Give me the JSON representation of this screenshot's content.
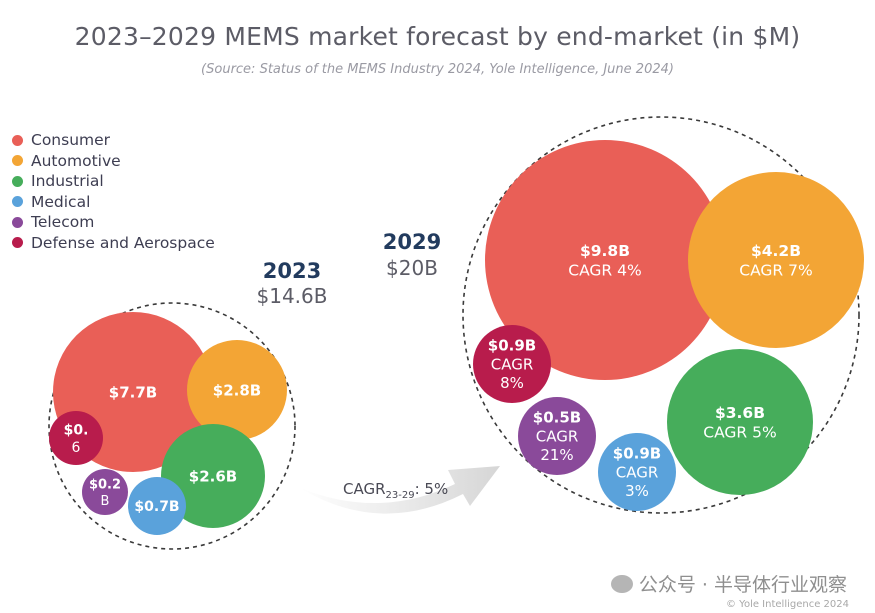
{
  "title": "2023–2029 MEMS market forecast by end-market (in $M)",
  "subtitle": "(Source: Status of the MEMS Industry 2024, Yole Intelligence, June 2024)",
  "watermark": "公众号 · 半导体行业观察",
  "copyright": "© Yole Intelligence 2024",
  "legend": [
    {
      "label": "Consumer",
      "color": "#e95f57"
    },
    {
      "label": "Automotive",
      "color": "#f3a535"
    },
    {
      "label": "Industrial",
      "color": "#46ad5b"
    },
    {
      "label": "Medical",
      "color": "#5aa2db"
    },
    {
      "label": "Telecom",
      "color": "#8a4a9a"
    },
    {
      "label": "Defense and Aerospace",
      "color": "#b81c4c"
    }
  ],
  "chart_data": {
    "type": "bubble",
    "title": "2023–2029 MEMS market forecast by end-market (in $M)",
    "cagr_arrow": {
      "label_main": "CAGR",
      "label_sub": "23-29",
      "label_tail": ": 5%"
    },
    "groups": [
      {
        "year": "2023",
        "total": "$14.6B",
        "segments": [
          {
            "name": "Consumer",
            "value": 7.7,
            "label_lines": [
              "$7.7B"
            ]
          },
          {
            "name": "Automotive",
            "value": 2.8,
            "label_lines": [
              "$2.8B"
            ]
          },
          {
            "name": "Industrial",
            "value": 2.6,
            "label_lines": [
              "$2.6B"
            ]
          },
          {
            "name": "Defense and Aerospace",
            "value": 0.6,
            "label_lines": [
              "$0.",
              "6"
            ]
          },
          {
            "name": "Telecom",
            "value": 0.2,
            "label_lines": [
              "$0.2",
              "B"
            ]
          },
          {
            "name": "Medical",
            "value": 0.7,
            "label_lines": [
              "$0.7B"
            ]
          }
        ]
      },
      {
        "year": "2029",
        "total": "$20B",
        "segments": [
          {
            "name": "Consumer",
            "value": 9.8,
            "cagr": "4%",
            "label_lines": [
              "$9.8B",
              "CAGR 4%"
            ]
          },
          {
            "name": "Automotive",
            "value": 4.2,
            "cagr": "7%",
            "label_lines": [
              "$4.2B",
              "CAGR 7%"
            ]
          },
          {
            "name": "Industrial",
            "value": 3.6,
            "cagr": "5%",
            "label_lines": [
              "$3.6B",
              "CAGR 5%"
            ]
          },
          {
            "name": "Defense and Aerospace",
            "value": 0.9,
            "cagr": "8%",
            "label_lines": [
              "$0.9B",
              "CAGR",
              "8%"
            ]
          },
          {
            "name": "Telecom",
            "value": 0.5,
            "cagr": "21%",
            "label_lines": [
              "$0.5B",
              "CAGR",
              "21%"
            ]
          },
          {
            "name": "Medical",
            "value": 0.9,
            "cagr": "3%",
            "label_lines": [
              "$0.9B",
              "CAGR",
              "3%"
            ]
          }
        ]
      }
    ]
  }
}
